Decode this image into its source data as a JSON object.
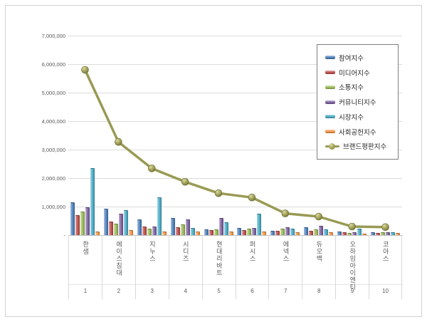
{
  "chart_data": {
    "type": "bar",
    "title": "",
    "xlabel": "",
    "ylabel": "",
    "categories": [
      "한샘",
      "에이스침대",
      "지누스",
      "시디즈",
      "현대리바트",
      "퍼시스",
      "에넥스",
      "듀오백",
      "오하임아이엔티",
      "코아스"
    ],
    "ranks": [
      "1",
      "2",
      "3",
      "4",
      "5",
      "6",
      "7",
      "8",
      "9",
      "10"
    ],
    "series": [
      {
        "name": "참여지수",
        "type": "bar",
        "color": "#4F81BD",
        "values": [
          1130000,
          900000,
          520000,
          570000,
          180000,
          230000,
          130000,
          250000,
          100000,
          70000
        ]
      },
      {
        "name": "미디어지수",
        "type": "bar",
        "color": "#C0504D",
        "values": [
          680000,
          450000,
          280000,
          250000,
          150000,
          150000,
          130000,
          130000,
          70000,
          50000
        ]
      },
      {
        "name": "소통지수",
        "type": "bar",
        "color": "#9BBB59",
        "values": [
          800000,
          380000,
          200000,
          350000,
          180000,
          200000,
          200000,
          170000,
          50000,
          80000
        ]
      },
      {
        "name": "커뮤니티지수",
        "type": "bar",
        "color": "#8064A2",
        "values": [
          950000,
          720000,
          280000,
          530000,
          570000,
          230000,
          250000,
          300000,
          80000,
          70000
        ]
      },
      {
        "name": "시장지수",
        "type": "bar",
        "color": "#4BACC6",
        "values": [
          2320000,
          840000,
          1300000,
          230000,
          420000,
          730000,
          200000,
          170000,
          200000,
          80000
        ]
      },
      {
        "name": "사회공헌지수",
        "type": "bar",
        "color": "#F79646",
        "values": [
          100000,
          150000,
          100000,
          100000,
          100000,
          100000,
          80000,
          70000,
          30000,
          50000
        ]
      },
      {
        "name": "브랜드평판지수",
        "type": "line",
        "color": "#999A54",
        "values": [
          5800000,
          3270000,
          2340000,
          1870000,
          1470000,
          1320000,
          760000,
          650000,
          300000,
          280000
        ]
      }
    ],
    "ylim": [
      0,
      7000000
    ],
    "ytick_interval": 1000000,
    "ytick_labels_top_down": [
      "7,000,000",
      "6,000,000",
      "5,000,000",
      "4,000,000",
      "3,000,000",
      "2,000,000",
      "1,000,000",
      "-"
    ],
    "grid": true,
    "legend_position": "upper-right"
  },
  "style_colors": {
    "gridline": "#dcdcdc",
    "axis": "#bfbfbf",
    "tick_text": "#595959",
    "legend_border": "#7f7f7f",
    "chart_border": "#d2d2d2",
    "background": "#ffffff"
  }
}
